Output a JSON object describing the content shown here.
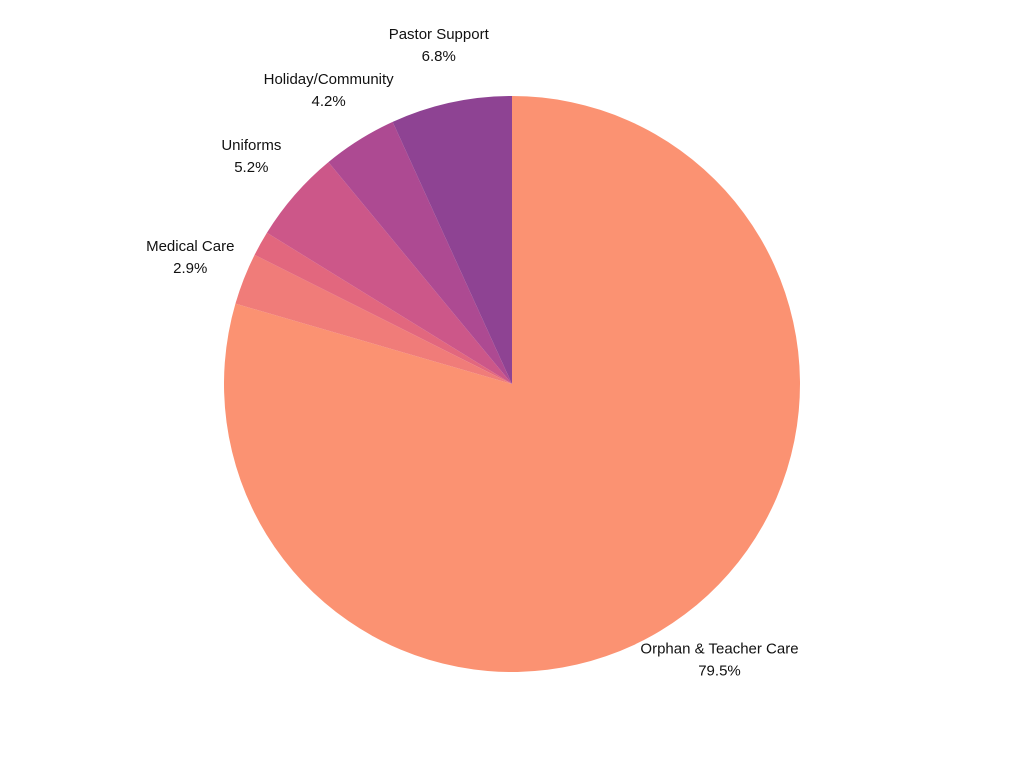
{
  "chart_data": {
    "type": "pie",
    "categories": [
      "Orphan & Teacher Care",
      "Medical Care",
      null,
      "Uniforms",
      "Holiday/Community",
      "Pastor Support"
    ],
    "values": [
      79.5,
      2.9,
      1.4,
      5.2,
      4.2,
      6.8
    ],
    "value_labels": [
      "79.5%",
      "2.9%",
      null,
      "5.2%",
      "4.2%",
      "6.8%"
    ],
    "colors": [
      "#fb9272",
      "#f07c79",
      "#e2677e",
      "#cc5789",
      "#ad4a92",
      "#8e4393"
    ]
  }
}
